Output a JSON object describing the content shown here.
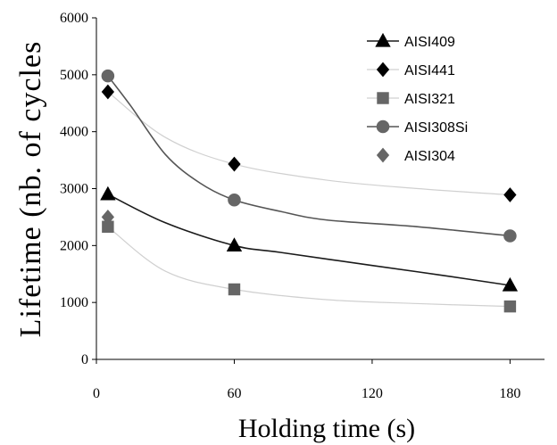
{
  "chart_data": {
    "type": "line",
    "xlabel": "Holding time (s)",
    "ylabel": "Lifetime (nb. of cycles",
    "xlim": [
      0,
      195
    ],
    "ylim": [
      0,
      6000
    ],
    "x_ticks": [
      "0",
      "60",
      "120",
      "180"
    ],
    "y_ticks": [
      "0",
      "1000",
      "2000",
      "3000",
      "4000",
      "5000",
      "6000"
    ],
    "grid": false,
    "legend_position": "top-right",
    "series": [
      {
        "name": "AISI409",
        "marker": "triangle",
        "color": "#000000",
        "line_color": "#1a1a1a",
        "x": [
          5,
          60,
          180
        ],
        "values": [
          2900,
          2000,
          1300
        ],
        "curve": [
          [
            5,
            2900
          ],
          [
            30,
            2400
          ],
          [
            60,
            2000
          ],
          [
            80,
            1880
          ],
          [
            120,
            1650
          ],
          [
            150,
            1480
          ],
          [
            180,
            1300
          ]
        ]
      },
      {
        "name": "AISI441",
        "marker": "diamond",
        "color": "#000000",
        "line_color": "#d0d0d0",
        "x": [
          5,
          60,
          180
        ],
        "values": [
          4700,
          3430,
          2890
        ],
        "curve": [
          [
            5,
            4700
          ],
          [
            30,
            3900
          ],
          [
            60,
            3430
          ],
          [
            100,
            3150
          ],
          [
            140,
            3000
          ],
          [
            180,
            2890
          ]
        ]
      },
      {
        "name": "AISI321",
        "marker": "square",
        "color": "#666666",
        "line_color": "#d0d0d0",
        "x": [
          5,
          60,
          180
        ],
        "values": [
          2330,
          1230,
          930
        ],
        "curve": [
          [
            5,
            2330
          ],
          [
            30,
            1550
          ],
          [
            60,
            1230
          ],
          [
            100,
            1050
          ],
          [
            140,
            980
          ],
          [
            180,
            930
          ]
        ]
      },
      {
        "name": "AISI308Si",
        "marker": "circle",
        "color": "#666666",
        "line_color": "#555555",
        "x": [
          5,
          60,
          180
        ],
        "values": [
          4980,
          2800,
          2170
        ],
        "curve": [
          [
            5,
            4980
          ],
          [
            15,
            4450
          ],
          [
            30,
            3600
          ],
          [
            45,
            3100
          ],
          [
            60,
            2800
          ],
          [
            80,
            2600
          ],
          [
            100,
            2450
          ],
          [
            140,
            2330
          ],
          [
            180,
            2170
          ]
        ]
      },
      {
        "name": "AISI304",
        "marker": "diamond",
        "color": "#666666",
        "line_color": null,
        "x": [
          5
        ],
        "values": [
          2500
        ],
        "curve": []
      }
    ]
  }
}
